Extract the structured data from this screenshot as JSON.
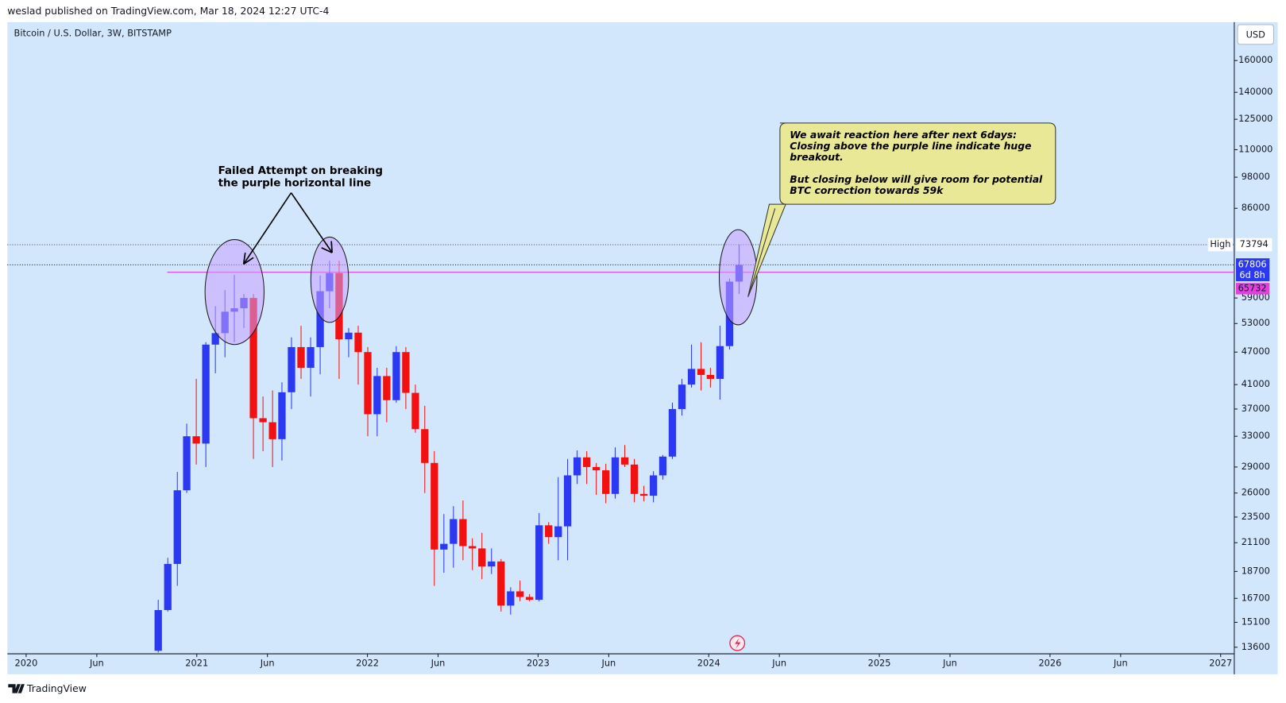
{
  "header": "weslad published on TradingView.com, Mar 18, 2024 12:27 UTC-4",
  "footer": "TradingView",
  "chart_data": {
    "type": "candlestick",
    "title": "Bitcoin / U.S. Dollar, 3W, BITSTAMP",
    "currency": "USD",
    "log_scale": true,
    "up_color": "#2b3af2",
    "down_color": "#f21010",
    "background": "#d3e7fc",
    "xlim": [
      2019.89,
      2027.08
    ],
    "ylim": [
      13230,
      188000
    ],
    "xticks": [
      2020,
      {
        "value": 2020.414,
        "label": "Jun"
      },
      2021,
      {
        "value": 2021.414,
        "label": "Jun"
      },
      2022,
      {
        "value": 2022.414,
        "label": "Jun"
      },
      2023,
      {
        "value": 2023.414,
        "label": "Jun"
      },
      2024,
      {
        "value": 2024.414,
        "label": "Jun"
      },
      2025,
      {
        "value": 2025.414,
        "label": "Jun"
      },
      2026,
      {
        "value": 2026.414,
        "label": "Jun"
      },
      2027
    ],
    "yticks": [
      13600,
      15100,
      16700,
      18700,
      21100,
      23500,
      26000,
      29000,
      33000,
      37000,
      41000,
      47000,
      53000,
      59000,
      86000,
      98000,
      110000,
      125000,
      140000,
      160000
    ],
    "x": [
      2020.774,
      2020.83,
      2020.886,
      2020.941,
      2020.997,
      2021.053,
      2021.109,
      2021.165,
      2021.22,
      2021.276,
      2021.332,
      2021.388,
      2021.444,
      2021.499,
      2021.555,
      2021.611,
      2021.667,
      2021.723,
      2021.778,
      2021.834,
      2021.89,
      2021.946,
      2022.002,
      2022.057,
      2022.113,
      2022.169,
      2022.225,
      2022.281,
      2022.336,
      2022.392,
      2022.448,
      2022.504,
      2022.56,
      2022.615,
      2022.671,
      2022.727,
      2022.783,
      2022.839,
      2022.894,
      2022.95,
      2023.006,
      2023.062,
      2023.118,
      2023.173,
      2023.229,
      2023.285,
      2023.341,
      2023.397,
      2023.452,
      2023.508,
      2023.564,
      2023.62,
      2023.676,
      2023.731,
      2023.787,
      2023.843,
      2023.899,
      2023.955,
      2024.01,
      2024.066,
      2024.122,
      2024.178
    ],
    "open": [
      13400,
      15900,
      19300,
      26300,
      33000,
      32000,
      48500,
      50900,
      55700,
      56500,
      59000,
      35600,
      35000,
      32600,
      39700,
      48000,
      44000,
      48000,
      60700,
      65500,
      49600,
      51000,
      47000,
      36200,
      42500,
      38400,
      47000,
      39600,
      34000,
      29500,
      20500,
      21000,
      23300,
      20800,
      20600,
      19100,
      19500,
      16200,
      17200,
      16800,
      16600,
      22700,
      21600,
      22600,
      28000,
      30200,
      29000,
      28600,
      25900,
      30200,
      29300,
      25900,
      25700,
      28000,
      30300,
      37000,
      41000,
      43800,
      42700,
      42000,
      48200,
      63200
    ],
    "high": [
      16600,
      19800,
      28400,
      34800,
      42000,
      49000,
      57000,
      61000,
      65000,
      60000,
      60000,
      39000,
      40000,
      41400,
      50000,
      52500,
      50000,
      64800,
      69000,
      69000,
      52000,
      52500,
      48000,
      44000,
      44000,
      48200,
      48000,
      41000,
      37500,
      31000,
      23800,
      24600,
      25200,
      21500,
      22000,
      20600,
      19700,
      17500,
      18000,
      17000,
      23900,
      23000,
      27800,
      30000,
      31100,
      31000,
      29500,
      29400,
      31500,
      31800,
      30000,
      26800,
      28500,
      30500,
      38000,
      42000,
      48500,
      49000,
      44000,
      52500,
      64000,
      73794
    ],
    "low": [
      13300,
      15800,
      17600,
      26000,
      29300,
      29000,
      43000,
      46000,
      49000,
      52000,
      30000,
      31000,
      29000,
      29800,
      37000,
      42000,
      39000,
      42800,
      56500,
      42000,
      46000,
      41000,
      33000,
      33000,
      35000,
      38000,
      37000,
      33500,
      26000,
      17600,
      18600,
      19000,
      19600,
      18800,
      18100,
      18500,
      15800,
      15600,
      16500,
      16500,
      16500,
      21000,
      19600,
      19600,
      27000,
      27000,
      25800,
      24900,
      25400,
      29000,
      25000,
      25100,
      25000,
      27500,
      30000,
      36000,
      40500,
      40000,
      40500,
      38500,
      47500,
      60000
    ],
    "close": [
      15900,
      19300,
      26300,
      33000,
      32000,
      48500,
      50900,
      55700,
      56500,
      59000,
      35600,
      35000,
      32600,
      39700,
      48000,
      44000,
      48000,
      60700,
      65500,
      49600,
      51000,
      47000,
      36200,
      42500,
      38400,
      47000,
      39600,
      34000,
      29500,
      20500,
      21000,
      23300,
      20800,
      20600,
      19100,
      19500,
      16200,
      17200,
      16800,
      16600,
      22700,
      21600,
      22600,
      28000,
      30200,
      29000,
      28600,
      25900,
      30200,
      29300,
      25900,
      25700,
      28000,
      30300,
      37000,
      41000,
      43800,
      42700,
      42000,
      48200,
      63200,
      67806
    ],
    "horizontal_line": {
      "value": 65732,
      "x_start": 2020.827,
      "color": "#e040e0"
    },
    "high_line": {
      "label": "High",
      "value": 73794
    },
    "last_price": {
      "value": 67806,
      "countdown": "6d 8h",
      "color": "#2b3af2"
    },
    "annotations": [
      {
        "lines": [
          "Failed Attempt on breaking",
          "the purple horizontal line"
        ]
      },
      {
        "lines": [
          "We await reaction here after next 6days:",
          "Closing above the purple line indicate huge",
          "breakout.",
          "",
          "But closing below will give room for potential",
          "BTC correction towards 59k"
        ]
      }
    ]
  }
}
